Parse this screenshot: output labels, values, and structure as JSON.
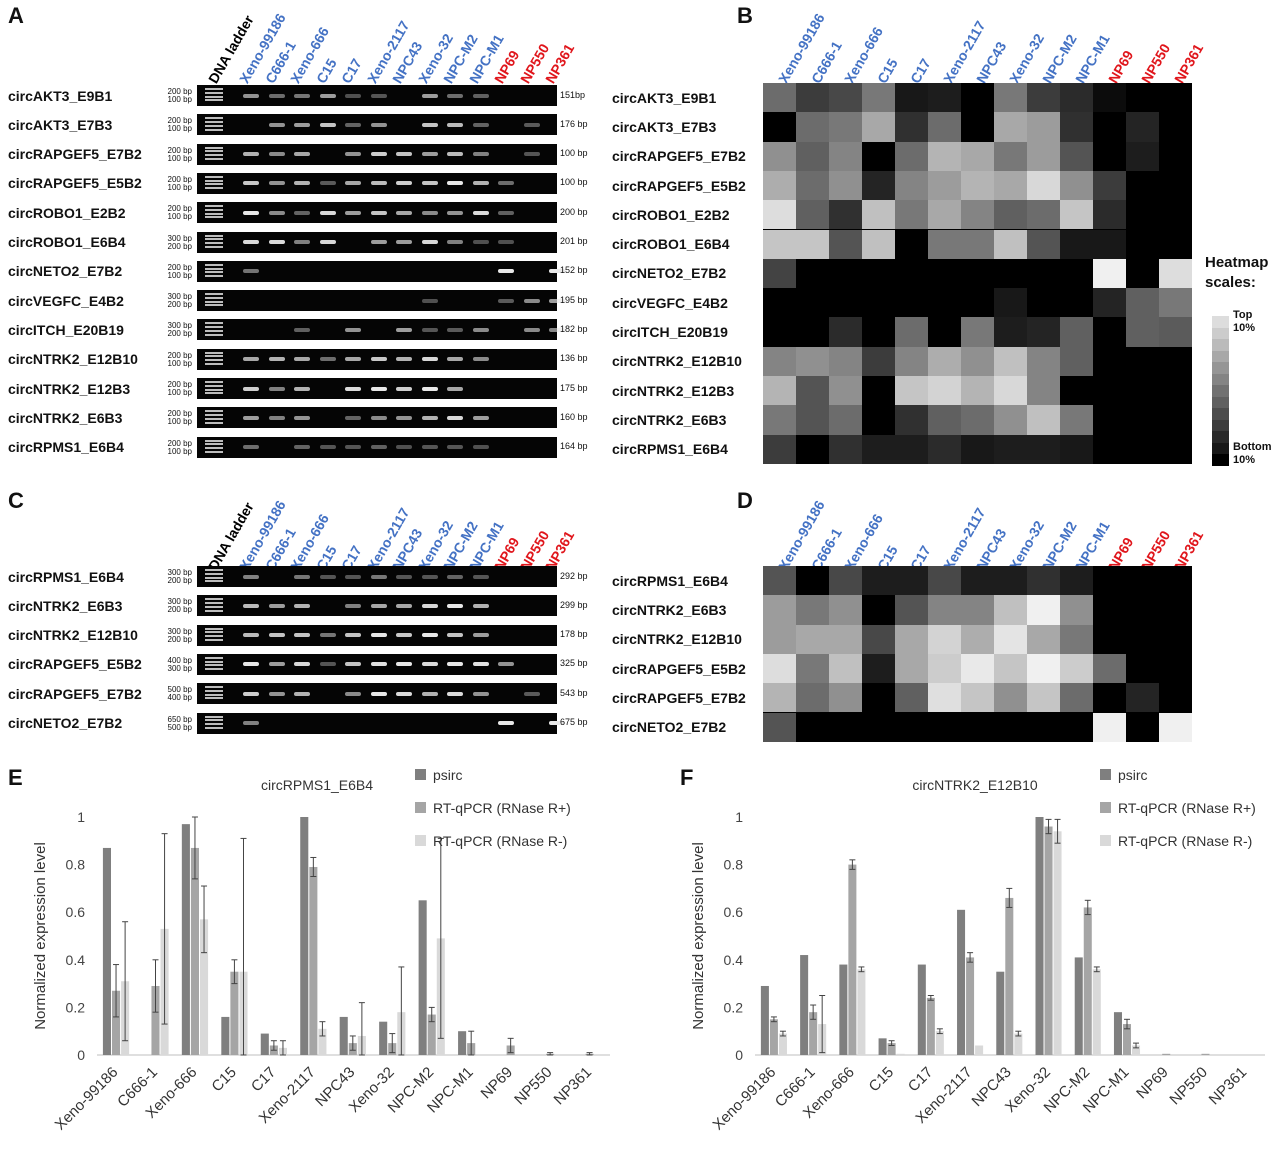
{
  "panel_labels": {
    "a": "A",
    "b": "B",
    "c": "C",
    "d": "D",
    "e": "E",
    "f": "F"
  },
  "dna_ladder": "DNA ladder",
  "lanes": [
    "Xeno-99186",
    "C666-1",
    "Xeno-666",
    "C15",
    "C17",
    "Xeno-2117",
    "NPC43",
    "Xeno-32",
    "NPC-M2",
    "NPC-M1",
    "NP69",
    "NP550",
    "NP361"
  ],
  "lane_colors": {
    "tumor": "#4472c4",
    "normal": "#e0151b"
  },
  "panel_a": {
    "rows": [
      {
        "name": "circAKT3_E9B1",
        "ladder": [
          "200 bp",
          "100 bp"
        ],
        "size": "151bp"
      },
      {
        "name": "circAKT3_E7B3",
        "ladder": [
          "200 bp",
          "100 bp"
        ],
        "size": "176 bp"
      },
      {
        "name": "circRAPGEF5_E7B2",
        "ladder": [
          "200 bp",
          "100 bp"
        ],
        "size": "100 bp"
      },
      {
        "name": "circRAPGEF5_E5B2",
        "ladder": [
          "200 bp",
          "100 bp"
        ],
        "size": "100 bp"
      },
      {
        "name": "circROBO1_E2B2",
        "ladder": [
          "200 bp",
          "100 bp"
        ],
        "size": "200 bp"
      },
      {
        "name": "circROBO1_E6B4",
        "ladder": [
          "300 bp",
          "200 bp"
        ],
        "size": "201 bp"
      },
      {
        "name": "circNETO2_E7B2",
        "ladder": [
          "200 bp",
          "100 bp"
        ],
        "size": "152 bp"
      },
      {
        "name": "circVEGFC_E4B2",
        "ladder": [
          "300 bp",
          "200 bp"
        ],
        "size": "195 bp"
      },
      {
        "name": "circITCH_E20B19",
        "ladder": [
          "300 bp",
          "200 bp"
        ],
        "size": "182 bp"
      },
      {
        "name": "circNTRK2_E12B10",
        "ladder": [
          "200 bp",
          "100 bp"
        ],
        "size": "136 bp"
      },
      {
        "name": "circNTRK2_E12B3",
        "ladder": [
          "200 bp",
          "100 bp"
        ],
        "size": "175 bp"
      },
      {
        "name": "circNTRK2_E6B3",
        "ladder": [
          "200 bp",
          "100 bp"
        ],
        "size": "160 bp"
      },
      {
        "name": "circRPMS1_E6B4",
        "ladder": [
          "200 bp",
          "100 bp"
        ],
        "size": "164 bp"
      }
    ]
  },
  "panel_b": {
    "scale_title": "Heatmap scales:",
    "scale_top": "Top 10%",
    "scale_bottom": "Bottom 10%",
    "heatmap": [
      [
        0.45,
        0.25,
        0.3,
        0.5,
        0.1,
        0.12,
        0.0,
        0.5,
        0.25,
        0.18,
        0.05,
        0.0,
        0.0
      ],
      [
        0.0,
        0.45,
        0.5,
        0.7,
        0.2,
        0.45,
        0.0,
        0.7,
        0.65,
        0.2,
        0.0,
        0.15,
        0.0
      ],
      [
        0.6,
        0.4,
        0.55,
        0.0,
        0.45,
        0.75,
        0.7,
        0.5,
        0.65,
        0.35,
        0.0,
        0.12,
        0.0
      ],
      [
        0.72,
        0.45,
        0.6,
        0.15,
        0.55,
        0.65,
        0.75,
        0.7,
        0.9,
        0.6,
        0.25,
        0.0,
        0.0
      ],
      [
        0.92,
        0.4,
        0.2,
        0.8,
        0.5,
        0.7,
        0.55,
        0.4,
        0.45,
        0.82,
        0.18,
        0.0,
        0.0
      ],
      [
        0.82,
        0.82,
        0.35,
        0.8,
        0.0,
        0.5,
        0.5,
        0.8,
        0.35,
        0.1,
        0.1,
        0.0,
        0.0
      ],
      [
        0.28,
        0.0,
        0.0,
        0.0,
        0.0,
        0.0,
        0.0,
        0.0,
        0.0,
        0.0,
        1.0,
        0.0,
        0.92
      ],
      [
        0.0,
        0.0,
        0.0,
        0.0,
        0.0,
        0.0,
        0.0,
        0.1,
        0.0,
        0.0,
        0.15,
        0.4,
        0.5
      ],
      [
        0.0,
        0.0,
        0.18,
        0.0,
        0.45,
        0.0,
        0.5,
        0.12,
        0.15,
        0.4,
        0.0,
        0.4,
        0.38
      ],
      [
        0.55,
        0.6,
        0.55,
        0.25,
        0.55,
        0.72,
        0.6,
        0.8,
        0.55,
        0.4,
        0.0,
        0.0,
        0.0
      ],
      [
        0.75,
        0.35,
        0.6,
        0.0,
        0.82,
        0.88,
        0.75,
        0.9,
        0.55,
        0.0,
        0.0,
        0.0,
        0.0
      ],
      [
        0.5,
        0.35,
        0.45,
        0.0,
        0.2,
        0.4,
        0.45,
        0.6,
        0.8,
        0.5,
        0.0,
        0.0,
        0.0
      ],
      [
        0.25,
        0.0,
        0.2,
        0.12,
        0.12,
        0.18,
        0.1,
        0.12,
        0.12,
        0.1,
        0.0,
        0.0,
        0.0
      ]
    ],
    "scale_levels": [
      0.92,
      0.85,
      0.78,
      0.7,
      0.62,
      0.55,
      0.47,
      0.4,
      0.32,
      0.25,
      0.17,
      0.1,
      0.0
    ]
  },
  "panel_c": {
    "rows": [
      {
        "name": "circRPMS1_E6B4",
        "ladder": [
          "300 bp",
          "200 bp"
        ],
        "size": "292 bp"
      },
      {
        "name": "circNTRK2_E6B3",
        "ladder": [
          "300 bp",
          "200 bp"
        ],
        "size": "299 bp"
      },
      {
        "name": "circNTRK2_E12B10",
        "ladder": [
          "300 bp",
          "200 bp"
        ],
        "size": "178 bp"
      },
      {
        "name": "circRAPGEF5_E5B2",
        "ladder": [
          "400 bp",
          "300 bp"
        ],
        "size": "325 bp"
      },
      {
        "name": "circRAPGEF5_E7B2",
        "ladder": [
          "500 bp",
          "400 bp"
        ],
        "size": "543 bp"
      },
      {
        "name": "circNETO2_E7B2",
        "ladder": [
          "650 bp",
          "500 bp"
        ],
        "size": "675 bp"
      }
    ]
  },
  "panel_d": {
    "heatmap": [
      [
        0.35,
        0.0,
        0.3,
        0.12,
        0.12,
        0.3,
        0.12,
        0.12,
        0.2,
        0.12,
        0.0,
        0.0,
        0.0
      ],
      [
        0.65,
        0.5,
        0.6,
        0.0,
        0.35,
        0.55,
        0.55,
        0.8,
        1.0,
        0.6,
        0.0,
        0.0,
        0.0
      ],
      [
        0.65,
        0.7,
        0.7,
        0.3,
        0.7,
        0.88,
        0.72,
        0.95,
        0.7,
        0.5,
        0.0,
        0.0,
        0.0
      ],
      [
        0.92,
        0.5,
        0.8,
        0.12,
        0.7,
        0.85,
        0.97,
        0.82,
        1.0,
        0.85,
        0.45,
        0.0,
        0.0
      ],
      [
        0.75,
        0.45,
        0.6,
        0.0,
        0.4,
        0.93,
        0.82,
        0.6,
        0.82,
        0.45,
        0.0,
        0.15,
        0.0
      ],
      [
        0.35,
        0.0,
        0.0,
        0.0,
        0.0,
        0.0,
        0.0,
        0.0,
        0.0,
        0.0,
        1.0,
        0.0,
        1.0
      ]
    ]
  },
  "chart_data": [
    {
      "type": "bar",
      "title": "circRPMS1_E6B4",
      "ylabel": "Normalized expression level",
      "xlabel": "",
      "ylim": [
        0,
        1
      ],
      "yticks": [
        "0",
        "0.2",
        "0.4",
        "0.6",
        "0.8",
        "1"
      ],
      "categories": [
        "Xeno-99186",
        "C666-1",
        "Xeno-666",
        "C15",
        "C17",
        "Xeno-2117",
        "NPC43",
        "Xeno-32",
        "NPC-M2",
        "NPC-M1",
        "NP69",
        "NP550",
        "NP361"
      ],
      "series": [
        {
          "name": "psirc",
          "color": "#7f7f7f",
          "values": [
            0.87,
            0,
            0.97,
            0.16,
            0.09,
            1.0,
            0.16,
            0.14,
            0.65,
            0.1,
            0,
            0,
            0
          ]
        },
        {
          "name": "RT-qPCR (RNase R+)",
          "color": "#a5a5a5",
          "values": [
            0.27,
            0.29,
            0.87,
            0.35,
            0.04,
            0.79,
            0.05,
            0.05,
            0.17,
            0.05,
            0.04,
            0.005,
            0.005
          ],
          "error": [
            0.11,
            0.11,
            0.13,
            0.05,
            0.02,
            0.04,
            0.03,
            0.04,
            0.03,
            0.05,
            0.03,
            0.005,
            0.005
          ]
        },
        {
          "name": "RT-qPCR (RNase R-)",
          "color": "#d9d9d9",
          "values": [
            0.31,
            0.53,
            0.57,
            0.35,
            0.03,
            0.11,
            0.08,
            0.18,
            0.49,
            0,
            0,
            0,
            0
          ],
          "error": [
            0.25,
            0.4,
            0.14,
            0.56,
            0.03,
            0.03,
            0.14,
            0.19,
            0.42,
            0,
            0,
            0,
            0
          ]
        }
      ]
    },
    {
      "type": "bar",
      "title": "circNTRK2_E12B10",
      "ylabel": "Normalized expression level",
      "xlabel": "",
      "ylim": [
        0,
        1
      ],
      "yticks": [
        "0",
        "0.2",
        "0.4",
        "0.6",
        "0.8",
        "1"
      ],
      "categories": [
        "Xeno-99186",
        "C666-1",
        "Xeno-666",
        "C15",
        "C17",
        "Xeno-2117",
        "NPC43",
        "Xeno-32",
        "NPC-M2",
        "NPC-M1",
        "NP69",
        "NP550",
        "NP361"
      ],
      "series": [
        {
          "name": "psirc",
          "color": "#7f7f7f",
          "values": [
            0.29,
            0.42,
            0.38,
            0.07,
            0.38,
            0.61,
            0.35,
            1.0,
            0.41,
            0.18,
            0,
            0,
            0
          ]
        },
        {
          "name": "RT-qPCR (RNase R+)",
          "color": "#a5a5a5",
          "values": [
            0.15,
            0.18,
            0.8,
            0.05,
            0.24,
            0.41,
            0.66,
            0.96,
            0.62,
            0.13,
            0.005,
            0.005,
            0
          ],
          "error": [
            0.01,
            0.03,
            0.02,
            0.01,
            0.01,
            0.02,
            0.04,
            0.03,
            0.03,
            0.02,
            0,
            0,
            0
          ]
        },
        {
          "name": "RT-qPCR (RNase R-)",
          "color": "#d9d9d9",
          "values": [
            0.09,
            0.13,
            0.36,
            0.005,
            0.1,
            0.04,
            0.09,
            0.94,
            0.36,
            0.04,
            0,
            0,
            0
          ],
          "error": [
            0.01,
            0.12,
            0.01,
            0,
            0.01,
            0,
            0.01,
            0.05,
            0.01,
            0.01,
            0,
            0,
            0
          ]
        }
      ]
    }
  ]
}
